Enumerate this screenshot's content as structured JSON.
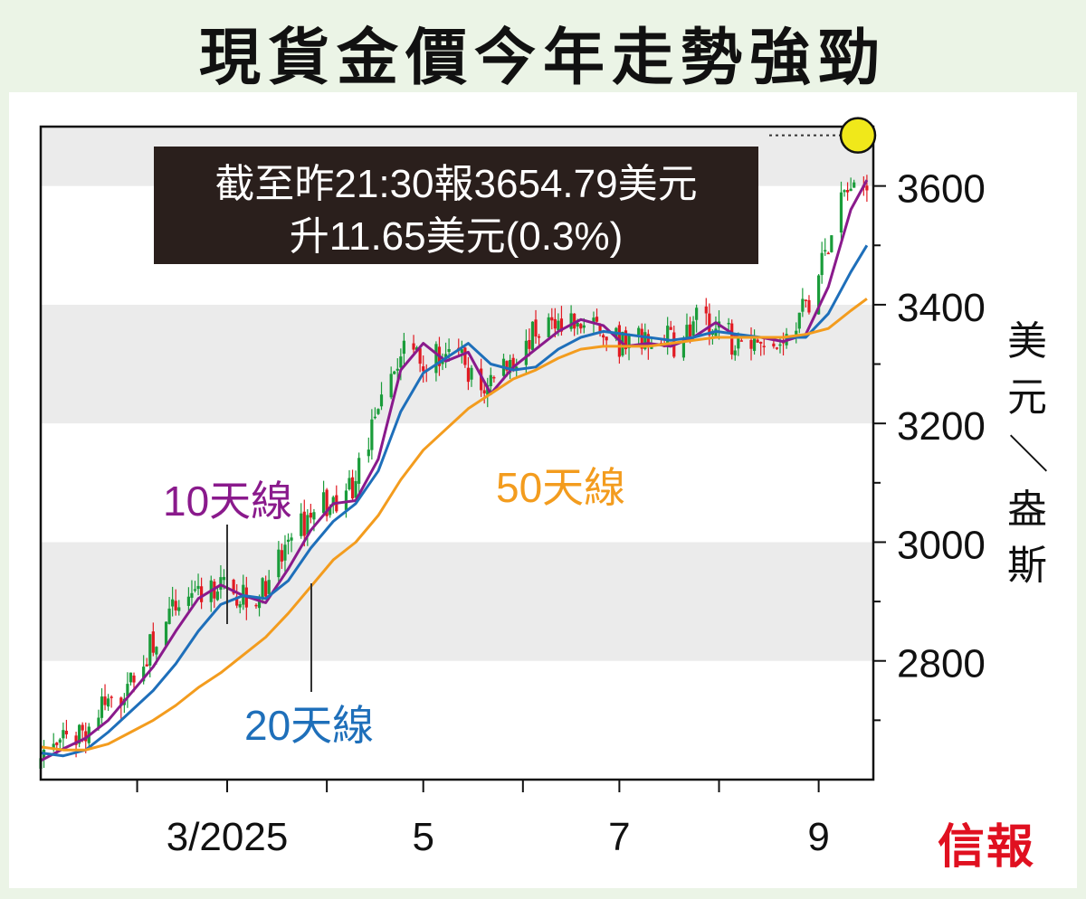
{
  "title": "現貨金價今年走勢強勁",
  "annotation": {
    "line1": "截至昨21:30報3654.79美元",
    "line2": "升11.65美元(0.3%)"
  },
  "logo": "信報",
  "colors": {
    "up": "#1a9c3a",
    "down": "#e11a22",
    "ma10": "#8a1a8c",
    "ma20": "#1e6fba",
    "ma50": "#f39c1e",
    "highlight": "#f0e81a",
    "band": "#ebebeb"
  },
  "chart_data": {
    "type": "candlestick",
    "title": "現貨金價今年走勢強勁",
    "ylabel": "美元/盎斯",
    "ylim": [
      2600,
      3700
    ],
    "yticks": [
      2800,
      3000,
      3200,
      3400,
      3600
    ],
    "x_ticks": [
      "3/2025",
      "5",
      "7",
      "9"
    ],
    "series": [
      {
        "name": "10天線",
        "points": [
          [
            "2025-01-02",
            2632
          ],
          [
            "2025-01-09",
            2652
          ],
          [
            "2025-01-16",
            2670
          ],
          [
            "2025-01-23",
            2700
          ],
          [
            "2025-01-30",
            2745
          ],
          [
            "2025-02-06",
            2790
          ],
          [
            "2025-02-13",
            2850
          ],
          [
            "2025-02-20",
            2905
          ],
          [
            "2025-02-27",
            2928
          ],
          [
            "2025-03-06",
            2910
          ],
          [
            "2025-03-13",
            2898
          ],
          [
            "2025-03-20",
            2955
          ],
          [
            "2025-03-27",
            3020
          ],
          [
            "2025-04-03",
            3065
          ],
          [
            "2025-04-10",
            3070
          ],
          [
            "2025-04-17",
            3140
          ],
          [
            "2025-04-24",
            3290
          ],
          [
            "2025-05-01",
            3335
          ],
          [
            "2025-05-08",
            3305
          ],
          [
            "2025-05-15",
            3320
          ],
          [
            "2025-05-22",
            3250
          ],
          [
            "2025-05-29",
            3295
          ],
          [
            "2025-06-05",
            3325
          ],
          [
            "2025-06-12",
            3355
          ],
          [
            "2025-06-19",
            3375
          ],
          [
            "2025-06-26",
            3365
          ],
          [
            "2025-07-03",
            3330
          ],
          [
            "2025-07-10",
            3335
          ],
          [
            "2025-07-17",
            3330
          ],
          [
            "2025-07-24",
            3345
          ],
          [
            "2025-07-31",
            3370
          ],
          [
            "2025-08-07",
            3345
          ],
          [
            "2025-08-14",
            3345
          ],
          [
            "2025-08-21",
            3338
          ],
          [
            "2025-08-28",
            3350
          ],
          [
            "2025-09-04",
            3430
          ],
          [
            "2025-09-11",
            3560
          ],
          [
            "2025-09-16",
            3610
          ]
        ]
      },
      {
        "name": "20天線",
        "points": [
          [
            "2025-01-02",
            2645
          ],
          [
            "2025-01-09",
            2640
          ],
          [
            "2025-01-16",
            2650
          ],
          [
            "2025-01-23",
            2680
          ],
          [
            "2025-01-30",
            2715
          ],
          [
            "2025-02-06",
            2750
          ],
          [
            "2025-02-13",
            2795
          ],
          [
            "2025-02-20",
            2850
          ],
          [
            "2025-02-27",
            2895
          ],
          [
            "2025-03-06",
            2910
          ],
          [
            "2025-03-13",
            2905
          ],
          [
            "2025-03-20",
            2935
          ],
          [
            "2025-03-27",
            2990
          ],
          [
            "2025-04-03",
            3035
          ],
          [
            "2025-04-10",
            3065
          ],
          [
            "2025-04-17",
            3120
          ],
          [
            "2025-04-24",
            3220
          ],
          [
            "2025-05-01",
            3285
          ],
          [
            "2025-05-08",
            3310
          ],
          [
            "2025-05-15",
            3335
          ],
          [
            "2025-05-22",
            3300
          ],
          [
            "2025-05-29",
            3290
          ],
          [
            "2025-06-05",
            3295
          ],
          [
            "2025-06-12",
            3325
          ],
          [
            "2025-06-19",
            3345
          ],
          [
            "2025-06-26",
            3355
          ],
          [
            "2025-07-03",
            3350
          ],
          [
            "2025-07-10",
            3345
          ],
          [
            "2025-07-17",
            3340
          ],
          [
            "2025-07-24",
            3345
          ],
          [
            "2025-07-31",
            3355
          ],
          [
            "2025-08-07",
            3350
          ],
          [
            "2025-08-14",
            3345
          ],
          [
            "2025-08-21",
            3345
          ],
          [
            "2025-08-28",
            3345
          ],
          [
            "2025-09-04",
            3385
          ],
          [
            "2025-09-11",
            3455
          ],
          [
            "2025-09-16",
            3500
          ]
        ]
      },
      {
        "name": "50天線",
        "points": [
          [
            "2025-01-02",
            2655
          ],
          [
            "2025-01-09",
            2650
          ],
          [
            "2025-01-16",
            2650
          ],
          [
            "2025-01-23",
            2660
          ],
          [
            "2025-01-30",
            2680
          ],
          [
            "2025-02-06",
            2700
          ],
          [
            "2025-02-13",
            2725
          ],
          [
            "2025-02-20",
            2755
          ],
          [
            "2025-02-27",
            2780
          ],
          [
            "2025-03-06",
            2810
          ],
          [
            "2025-03-13",
            2840
          ],
          [
            "2025-03-20",
            2880
          ],
          [
            "2025-03-27",
            2925
          ],
          [
            "2025-04-03",
            2970
          ],
          [
            "2025-04-10",
            3000
          ],
          [
            "2025-04-17",
            3045
          ],
          [
            "2025-04-24",
            3105
          ],
          [
            "2025-05-01",
            3155
          ],
          [
            "2025-05-08",
            3190
          ],
          [
            "2025-05-15",
            3225
          ],
          [
            "2025-05-22",
            3250
          ],
          [
            "2025-05-29",
            3275
          ],
          [
            "2025-06-05",
            3290
          ],
          [
            "2025-06-12",
            3310
          ],
          [
            "2025-06-19",
            3325
          ],
          [
            "2025-06-26",
            3330
          ],
          [
            "2025-07-03",
            3330
          ],
          [
            "2025-07-10",
            3330
          ],
          [
            "2025-07-17",
            3335
          ],
          [
            "2025-07-24",
            3340
          ],
          [
            "2025-07-31",
            3345
          ],
          [
            "2025-08-07",
            3345
          ],
          [
            "2025-08-14",
            3345
          ],
          [
            "2025-08-21",
            3345
          ],
          [
            "2025-08-28",
            3350
          ],
          [
            "2025-09-04",
            3360
          ],
          [
            "2025-09-11",
            3390
          ],
          [
            "2025-09-16",
            3410
          ]
        ]
      }
    ],
    "last_price": 3654.79,
    "change": 11.65,
    "change_pct": 0.3
  }
}
